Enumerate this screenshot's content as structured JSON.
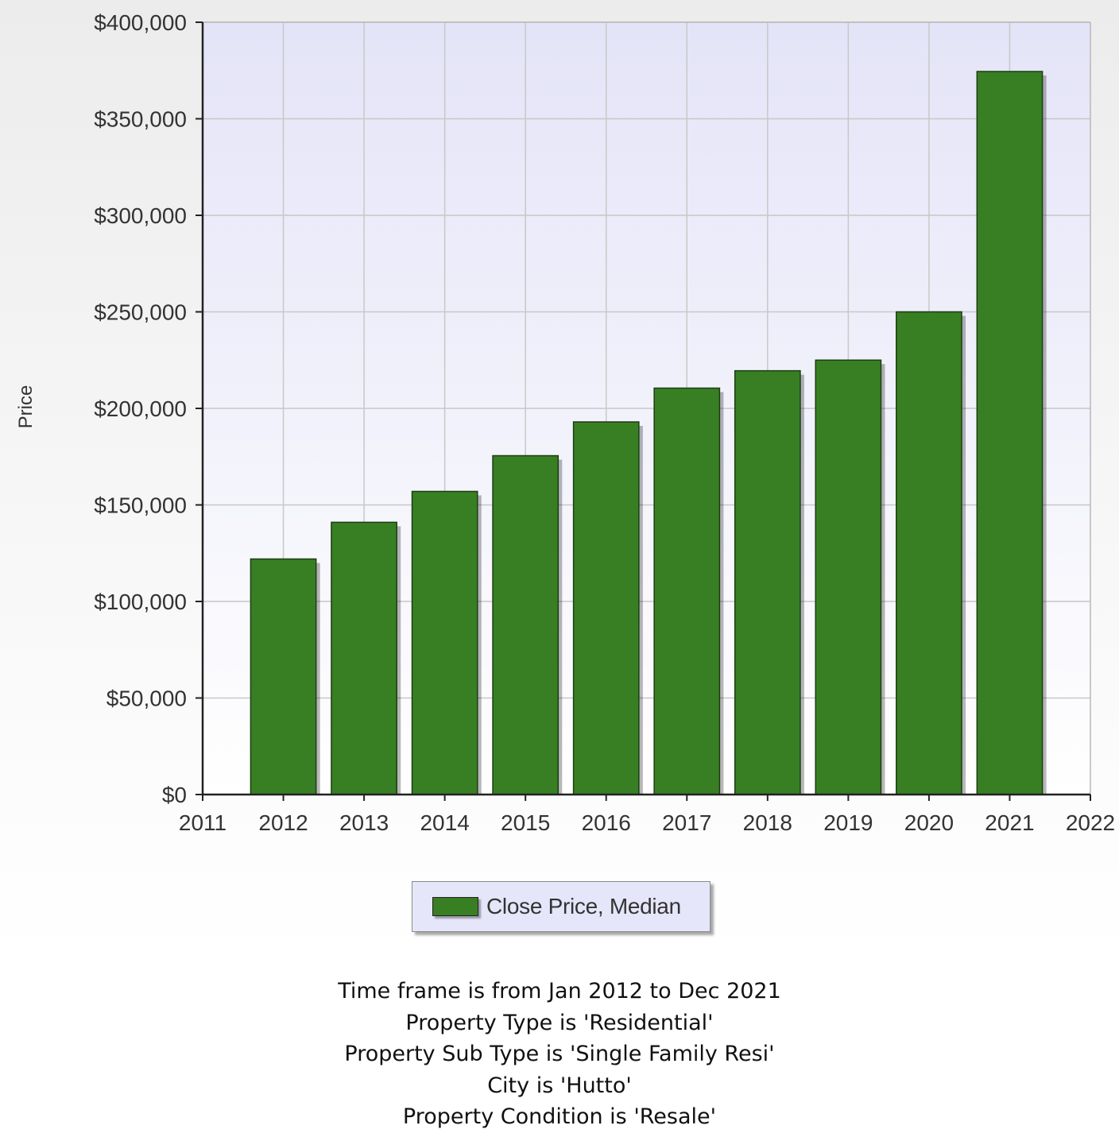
{
  "chart_data": {
    "type": "bar",
    "categories": [
      "2012",
      "2013",
      "2014",
      "2015",
      "2016",
      "2017",
      "2018",
      "2019",
      "2020",
      "2021"
    ],
    "series": [
      {
        "name": "Close Price, Median",
        "values": [
          122000,
          141000,
          157000,
          175500,
          193000,
          210500,
          219500,
          225000,
          250000,
          374500
        ]
      }
    ],
    "x_tick_labels": [
      "2011",
      "2012",
      "2013",
      "2014",
      "2015",
      "2016",
      "2017",
      "2018",
      "2019",
      "2020",
      "2021",
      "2022"
    ],
    "xlim": [
      2011,
      2022
    ],
    "y_tick_labels": [
      "$0",
      "$50,000",
      "$100,000",
      "$150,000",
      "$200,000",
      "$250,000",
      "$300,000",
      "$350,000",
      "$400,000"
    ],
    "ylim": [
      0,
      400000
    ],
    "ylabel": "Price",
    "xlabel": "",
    "title": "",
    "grid": true,
    "legend_position": "bottom-center",
    "colors": {
      "bar": "#387f24",
      "plot_background": "#e6e6fa",
      "legend_background": "#e6e6fa",
      "grid": "#c8c8c8"
    }
  },
  "legend": {
    "label": "Close Price, Median"
  },
  "notes": [
    "Time frame is from Jan 2012 to Dec 2021",
    "Property Type is 'Residential'",
    "Property Sub Type is 'Single Family Resi'",
    "City is 'Hutto'",
    "Property Condition is 'Resale'"
  ]
}
